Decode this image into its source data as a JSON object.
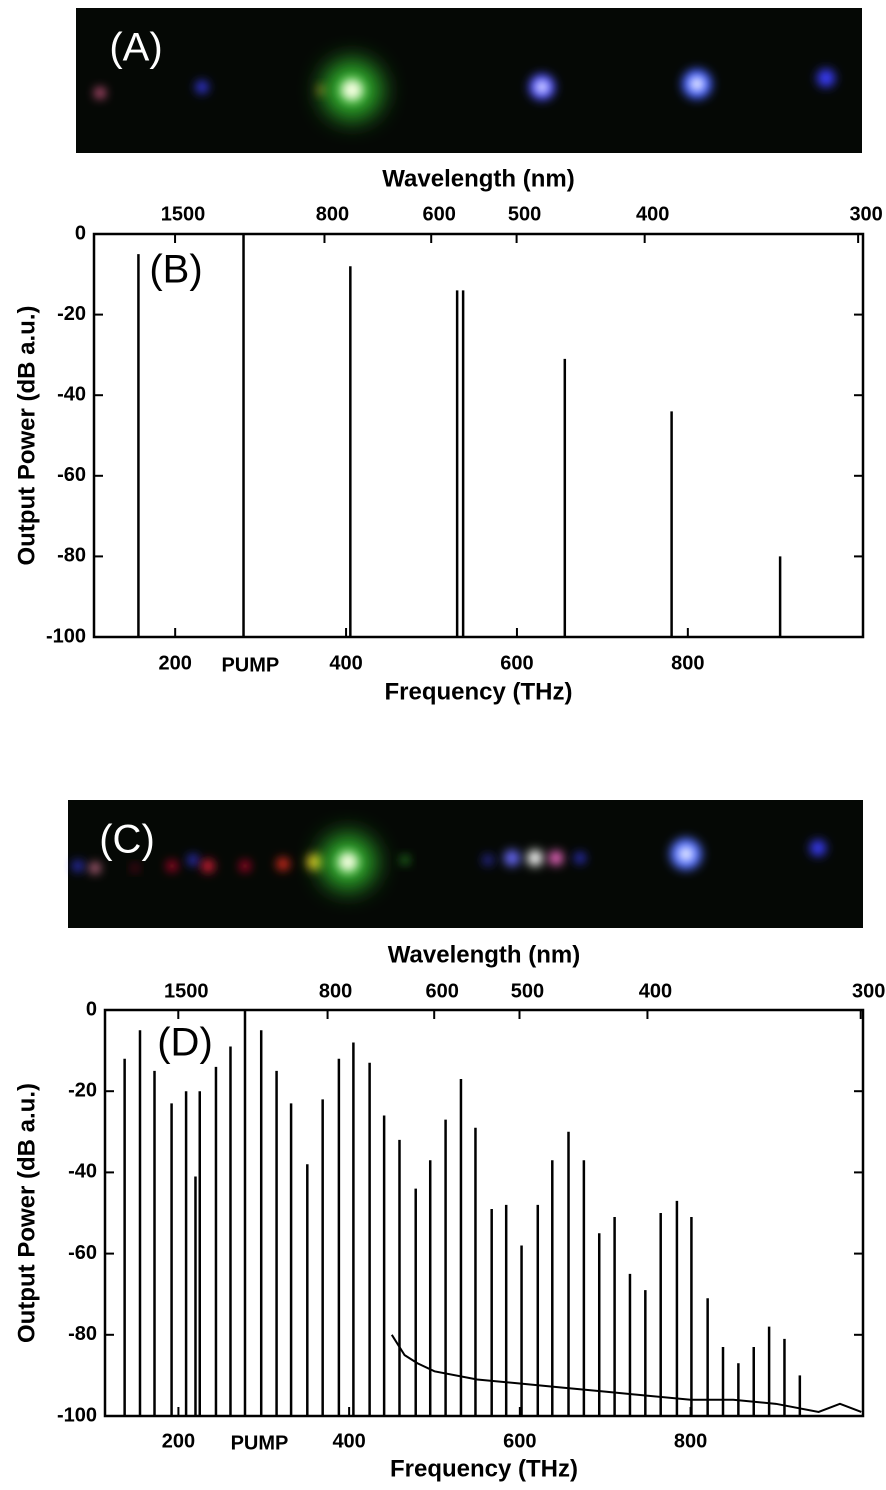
{
  "chart_data": [
    {
      "type": "stem",
      "photo_label": "(A)",
      "panel_label": "(B)",
      "x_label": "Frequency (THz)",
      "x2_label": "Wavelength (nm)",
      "y_label": "Output Power (dB a.u.)",
      "xlim": [
        105,
        1005
      ],
      "xticks": [
        200,
        400,
        600,
        800
      ],
      "x2ticks": [
        1500,
        800,
        600,
        500,
        400,
        300
      ],
      "ylim": [
        -100,
        0
      ],
      "yticks": [
        0,
        -20,
        -40,
        -60,
        -80,
        -100
      ],
      "annotations": [
        {
          "text": "PUMP",
          "x": 288
        }
      ],
      "series": [
        {
          "type": "stem",
          "color": "#000000",
          "x": [
            157,
            280,
            405,
            530,
            537,
            656,
            781,
            908
          ],
          "values": [
            -5,
            0,
            -8,
            -14,
            -14,
            -31,
            -44,
            -80
          ]
        }
      ]
    },
    {
      "type": "stem",
      "photo_label": "(C)",
      "panel_label": "(D)",
      "x_label": "Frequency (THz)",
      "x2_label": "Wavelength (nm)",
      "y_label": "Output Power (dB a.u.)",
      "xlim": [
        114,
        1002
      ],
      "xticks": [
        200,
        400,
        600,
        800
      ],
      "x2ticks": [
        1500,
        800,
        600,
        500,
        400,
        300
      ],
      "ylim": [
        -100,
        0
      ],
      "yticks": [
        0,
        -20,
        -40,
        -60,
        -80,
        -100
      ],
      "annotations": [
        {
          "text": "PUMP",
          "x": 295
        }
      ],
      "series": [
        {
          "type": "stem",
          "color": "#000000",
          "x": [
            137,
            155,
            172,
            192,
            209,
            220,
            225,
            244,
            261,
            278,
            297,
            315,
            332,
            351,
            369,
            388,
            405,
            424,
            441,
            459,
            478,
            495,
            513,
            531,
            548,
            567,
            584,
            602,
            621,
            638,
            657,
            675,
            693,
            711,
            729,
            747,
            765,
            784,
            801,
            820,
            838,
            856,
            874,
            892,
            910,
            928
          ],
          "values": [
            -12,
            -5,
            -15,
            -23,
            -20,
            -41,
            -20,
            -14,
            -9,
            0,
            -5,
            -15,
            -23,
            -38,
            -22,
            -12,
            -8,
            -13,
            -26,
            -32,
            -44,
            -37,
            -27,
            -17,
            -29,
            -49,
            -48,
            -58,
            -48,
            -37,
            -30,
            -37,
            -55,
            -51,
            -65,
            -69,
            -50,
            -47,
            -51,
            -71,
            -83,
            -87,
            -83,
            -78,
            -81,
            -90
          ]
        },
        {
          "type": "line",
          "color": "#000000",
          "x": [
            450,
            465,
            480,
            500,
            550,
            600,
            650,
            700,
            750,
            800,
            850,
            900,
            950,
            975,
            1000
          ],
          "values": [
            -80,
            -85,
            -87,
            -89,
            -91,
            -92,
            -93,
            -94,
            -95,
            -96,
            -96,
            -97,
            -99,
            -97,
            -99
          ]
        }
      ]
    }
  ]
}
